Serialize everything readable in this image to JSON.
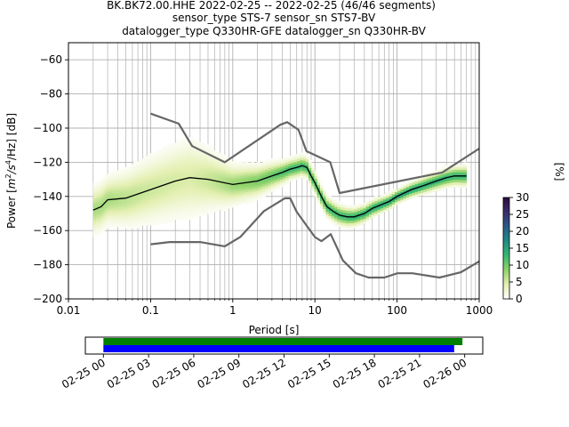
{
  "chart_data": {
    "type": "heatmap",
    "title_lines": [
      "BK.BK72.00.HHE   2022-02-25 -- 2022-02-25  (46/46 segments)",
      "sensor_type STS-7 sensor_sn STS7-BV",
      "datalogger_type Q330HR-GFE datalogger_sn Q330HR-BV"
    ],
    "xlabel": "Period [s]",
    "ylabel_parts": {
      "pre": "Power [",
      "m": "m",
      "m_exp": "2",
      "s": "/s",
      "s_exp": "4",
      "post": "/Hz] [dB]"
    },
    "x_scale": "log",
    "xlim": [
      0.01,
      1000
    ],
    "ylim": [
      -200,
      -50
    ],
    "x_ticks": [
      {
        "value": 0.01,
        "label": "0.01"
      },
      {
        "value": 0.1,
        "label": "0.1"
      },
      {
        "value": 1,
        "label": "1"
      },
      {
        "value": 10,
        "label": "10"
      },
      {
        "value": 100,
        "label": "100"
      },
      {
        "value": 1000,
        "label": "1000"
      }
    ],
    "y_ticks": [
      -60,
      -80,
      -100,
      -120,
      -140,
      -160,
      -180,
      -200
    ],
    "grid": true,
    "colorbar": {
      "label": "[%]",
      "range": [
        0,
        30
      ],
      "ticks": [
        0,
        5,
        10,
        15,
        20,
        25,
        30
      ],
      "colors": [
        "#ffffff",
        "#e3efb0",
        "#8fd36a",
        "#34b873",
        "#1f8c84",
        "#2a5a87",
        "#3b2c6b",
        "#2a0a3a"
      ]
    },
    "model_colors": {
      "model": "#666666",
      "mode": "#000000"
    },
    "high_noise_model": {
      "name": "",
      "periods": [
        0.1,
        0.22,
        0.32,
        0.8,
        3.8,
        4.6,
        6.3,
        7.9,
        15.4,
        20,
        354.8,
        1000
      ],
      "values": [
        -91.5,
        -97.4,
        -110.5,
        -120,
        -98,
        -96.5,
        -101,
        -113.5,
        -120,
        -138,
        -126,
        -112
      ]
    },
    "low_noise_model": {
      "name": "",
      "periods": [
        0.1,
        0.17,
        0.4,
        0.8,
        1.24,
        2.4,
        4.3,
        5,
        6,
        10,
        12,
        15.6,
        21.9,
        31.6,
        45,
        70,
        101,
        154,
        328,
        600,
        1000
      ],
      "values": [
        -168,
        -166.7,
        -166.7,
        -169.2,
        -163.7,
        -148.6,
        -141.1,
        -141.1,
        -149,
        -163.8,
        -166.2,
        -162.1,
        -177.5,
        -185,
        -187.5,
        -187.5,
        -185,
        -185,
        -187.5,
        -184.4,
        -178
      ]
    },
    "mode_curve": {
      "name": "",
      "periods": [
        0.02,
        0.025,
        0.03,
        0.05,
        0.1,
        0.2,
        0.3,
        0.5,
        1,
        2,
        3,
        4,
        5,
        6,
        7,
        8,
        9,
        10,
        12,
        14,
        17,
        20,
        25,
        30,
        40,
        50,
        80,
        100,
        150,
        200,
        300,
        400,
        500,
        700
      ],
      "values": [
        -148,
        -146,
        -142,
        -141,
        -136,
        -131,
        -129,
        -130,
        -133,
        -131,
        -128,
        -126,
        -124,
        -123,
        -122,
        -123,
        -128,
        -132,
        -140,
        -146,
        -149,
        -151,
        -152,
        -152,
        -150,
        -147,
        -143,
        -140,
        -136,
        -134,
        -131,
        -129,
        -128,
        -128
      ]
    },
    "heatmap_core_spread_db": 4,
    "heatmap_spread_by_period": [
      {
        "period": 0.03,
        "spread": 7
      },
      {
        "period": 0.1,
        "spread": 10
      },
      {
        "period": 0.3,
        "spread": 12
      },
      {
        "period": 1,
        "spread": 6
      },
      {
        "period": 5,
        "spread": 3
      },
      {
        "period": 20,
        "spread": 3
      },
      {
        "period": 100,
        "spread": 2
      },
      {
        "period": 700,
        "spread": 3
      }
    ],
    "timeline": {
      "x_ticks": [
        "02-25 00",
        "02-25 03",
        "02-25 06",
        "02-25 09",
        "02-25 12",
        "02-25 15",
        "02-25 18",
        "02-25 21",
        "02-26 00"
      ],
      "range_hours": [
        -1.2,
        25.2
      ],
      "bars": [
        {
          "color": "#008000",
          "start_hours": 0,
          "end_hours": 23.85
        },
        {
          "color": "#0000ff",
          "start_hours": 0,
          "end_hours": 23.3
        }
      ]
    }
  }
}
